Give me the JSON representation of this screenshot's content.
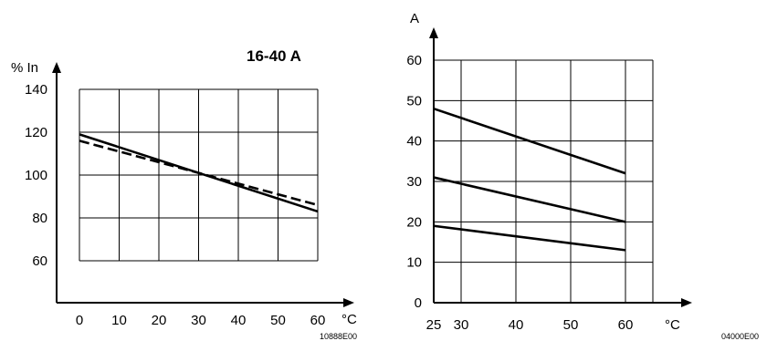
{
  "chart_data": [
    {
      "type": "line",
      "title": "16-40 A",
      "ylabel": "% In",
      "xlabel": "°C",
      "x_ticks": [
        "0",
        "10",
        "20",
        "30",
        "40",
        "50",
        "60"
      ],
      "y_ticks": [
        "60",
        "80",
        "100",
        "120",
        "140"
      ],
      "xlim": [
        0,
        60
      ],
      "ylim": [
        50,
        140
      ],
      "grid": true,
      "figure_code": "10888E00",
      "series": [
        {
          "style": "solid",
          "x": [
            0,
            60
          ],
          "y": [
            119,
            83
          ]
        },
        {
          "style": "dashed",
          "x": [
            0,
            60
          ],
          "y": [
            116,
            86
          ]
        }
      ]
    },
    {
      "type": "line",
      "ylabel": "A",
      "xlabel": "°C",
      "x_ticks": [
        "25",
        "30",
        "40",
        "50",
        "60"
      ],
      "y_ticks": [
        "0",
        "10",
        "20",
        "30",
        "40",
        "50",
        "60"
      ],
      "xlim": [
        25,
        65
      ],
      "ylim": [
        0,
        60
      ],
      "grid": true,
      "figure_code": "04000E00",
      "series": [
        {
          "style": "solid",
          "x": [
            25,
            60
          ],
          "y": [
            48,
            32
          ]
        },
        {
          "style": "solid",
          "x": [
            25,
            60
          ],
          "y": [
            31,
            20
          ]
        },
        {
          "style": "solid",
          "x": [
            25,
            60
          ],
          "y": [
            19,
            13
          ]
        }
      ]
    }
  ]
}
